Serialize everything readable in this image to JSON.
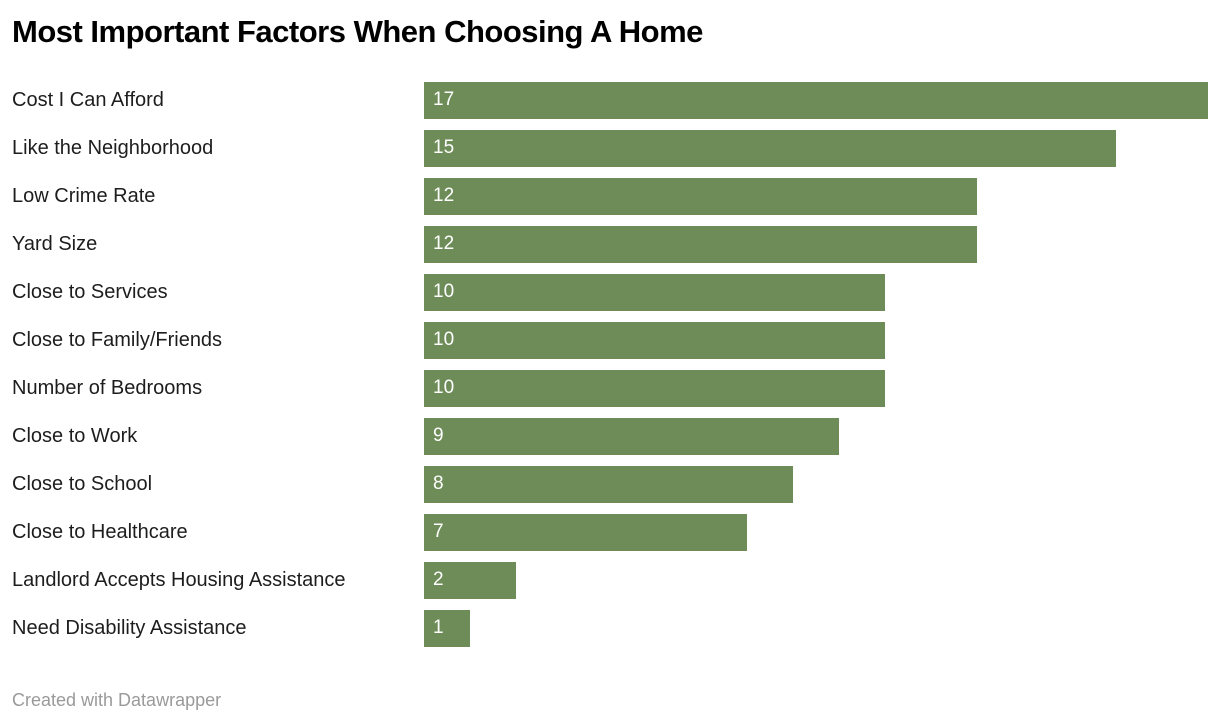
{
  "header": {
    "title": "Most Important Factors When Choosing A Home"
  },
  "footer": {
    "attribution": "Created with Datawrapper"
  },
  "colors": {
    "bar": "#6d8c58",
    "bar_value_text": "#ffffff",
    "category_label_text": "#1d1d1d",
    "title_text": "#000000",
    "footer_text": "#9a9a9a",
    "background": "#ffffff"
  },
  "chart_data": {
    "type": "bar",
    "orientation": "horizontal",
    "title": "Most Important Factors When Choosing A Home",
    "xlabel": "",
    "ylabel": "",
    "xlim": [
      0,
      17
    ],
    "grid": false,
    "legend": false,
    "value_label_position": "inside-start",
    "categories": [
      "Cost I Can Afford",
      "Like the Neighborhood",
      "Low Crime Rate",
      "Yard Size",
      "Close to Services",
      "Close to Family/Friends",
      "Number of Bedrooms",
      "Close to Work",
      "Close to School",
      "Close to Healthcare",
      "Landlord Accepts Housing Assistance",
      "Need Disability Assistance"
    ],
    "values": [
      17,
      15,
      12,
      12,
      10,
      10,
      10,
      9,
      8,
      7,
      2,
      1
    ]
  }
}
